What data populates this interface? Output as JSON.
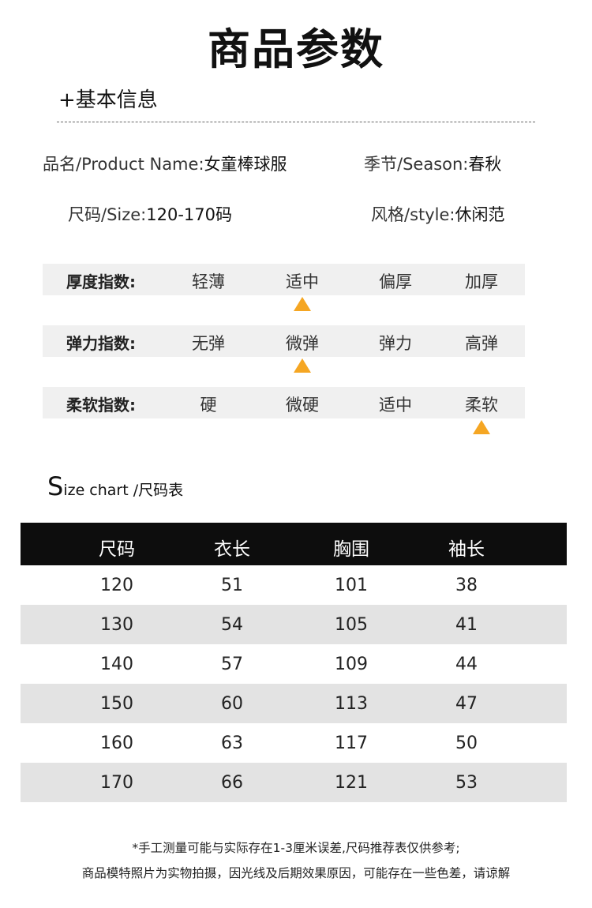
{
  "page_title": "商品参数",
  "section_basic": "+基本信息",
  "info": {
    "name_label": "品名/Product Name:",
    "name_value": "女童棒球服",
    "season_label": "季节/Season:",
    "season_value": "春秋",
    "size_label": "尺码/Size:",
    "size_value": "120-170码",
    "style_label": "风格/style:",
    "style_value": "休闲范"
  },
  "indices": [
    {
      "label": "厚度指数:",
      "options": [
        "轻薄",
        "适中",
        "偏厚",
        "加厚"
      ],
      "selected": "适中"
    },
    {
      "label": "弹力指数:",
      "options": [
        "无弹",
        "微弹",
        "弹力",
        "高弹"
      ],
      "selected": "微弹"
    },
    {
      "label": "柔软指数:",
      "options": [
        "硬",
        "微硬",
        "适中",
        "柔软"
      ],
      "selected": "柔软"
    }
  ],
  "marker_icon": "orange-triangle-icon",
  "marker_color": "#f5a623",
  "size_chart": {
    "title_big": "S",
    "title_rest": "ize chart",
    "title_cn": " /尺码表",
    "headers": [
      "尺码",
      "衣长",
      "胸围",
      "袖长"
    ],
    "rows": [
      [
        "120",
        "51",
        "101",
        "38"
      ],
      [
        "130",
        "54",
        "105",
        "41"
      ],
      [
        "140",
        "57",
        "109",
        "44"
      ],
      [
        "150",
        "60",
        "113",
        "47"
      ],
      [
        "160",
        "63",
        "117",
        "50"
      ],
      [
        "170",
        "66",
        "121",
        "53"
      ]
    ]
  },
  "notes": [
    "*手工测量可能与实际存在1-3厘米误差,尺码推荐表仅供参考;",
    "商品模特照片为实物拍摄，因光线及后期效果原因，可能存在一些色差，请谅解"
  ]
}
